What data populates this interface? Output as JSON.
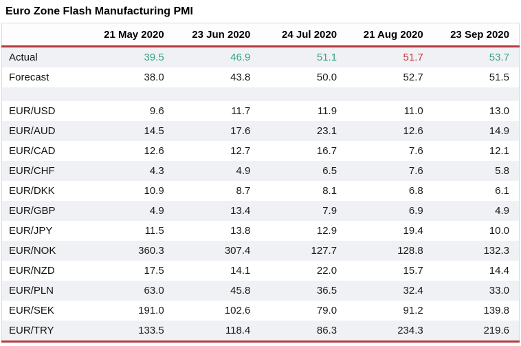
{
  "title": "Euro Zone Flash Manufacturing PMI",
  "colors": {
    "positive": "#34a385",
    "negative": "#c23b3e",
    "rule": "#b5383c",
    "row_alt": "#f0f1f4",
    "border": "#d9d9d9",
    "text": "#1a1a1a"
  },
  "chart_data": {
    "type": "table",
    "title": "Euro Zone Flash Manufacturing PMI",
    "columns": [
      "",
      "21 May 2020",
      "23 Jun 2020",
      "24 Jul 2020",
      "21 Aug 2020",
      "23 Sep 2020"
    ],
    "rows": [
      {
        "label": "Actual",
        "values": [
          "39.5",
          "46.9",
          "51.1",
          "51.7",
          "53.7"
        ],
        "value_colors": [
          "positive",
          "positive",
          "positive",
          "negative",
          "positive"
        ]
      },
      {
        "label": "Forecast",
        "values": [
          "38.0",
          "43.8",
          "50.0",
          "52.7",
          "51.5"
        ]
      },
      {
        "label": "",
        "spacer": true,
        "values": [
          "",
          "",
          "",
          "",
          ""
        ]
      },
      {
        "label": "EUR/USD",
        "values": [
          "9.6",
          "11.7",
          "11.9",
          "11.0",
          "13.0"
        ]
      },
      {
        "label": "EUR/AUD",
        "values": [
          "14.5",
          "17.6",
          "23.1",
          "12.6",
          "14.9"
        ]
      },
      {
        "label": "EUR/CAD",
        "values": [
          "12.6",
          "12.7",
          "16.7",
          "7.6",
          "12.1"
        ]
      },
      {
        "label": "EUR/CHF",
        "values": [
          "4.3",
          "4.9",
          "6.5",
          "7.6",
          "5.8"
        ]
      },
      {
        "label": "EUR/DKK",
        "values": [
          "10.9",
          "8.7",
          "8.1",
          "6.8",
          "6.1"
        ]
      },
      {
        "label": "EUR/GBP",
        "values": [
          "4.9",
          "13.4",
          "7.9",
          "6.9",
          "4.9"
        ]
      },
      {
        "label": "EUR/JPY",
        "values": [
          "11.5",
          "13.8",
          "12.9",
          "19.4",
          "10.0"
        ]
      },
      {
        "label": "EUR/NOK",
        "values": [
          "360.3",
          "307.4",
          "127.7",
          "128.8",
          "132.3"
        ]
      },
      {
        "label": "EUR/NZD",
        "values": [
          "17.5",
          "14.1",
          "22.0",
          "15.7",
          "14.4"
        ]
      },
      {
        "label": "EUR/PLN",
        "values": [
          "63.0",
          "45.8",
          "36.5",
          "32.4",
          "33.0"
        ]
      },
      {
        "label": "EUR/SEK",
        "values": [
          "191.0",
          "102.6",
          "79.0",
          "91.2",
          "139.8"
        ]
      },
      {
        "label": "EUR/TRY",
        "values": [
          "133.5",
          "118.4",
          "86.3",
          "234.3",
          "219.6"
        ]
      }
    ]
  }
}
